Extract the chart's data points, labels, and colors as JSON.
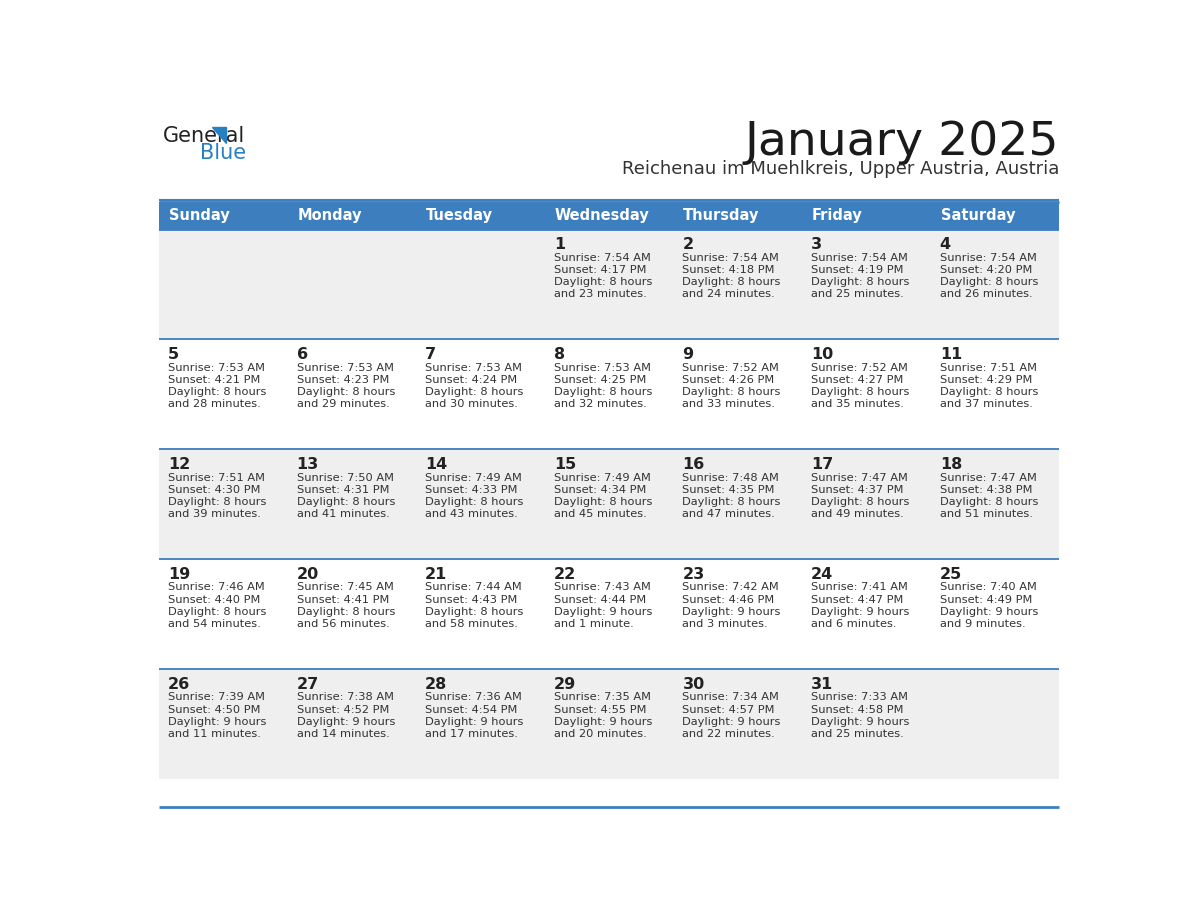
{
  "title": "January 2025",
  "subtitle": "Reichenau im Muehlkreis, Upper Austria, Austria",
  "header_bg_color": "#3d7ebf",
  "header_text_color": "#ffffff",
  "cell_bg_light": "#efefef",
  "cell_bg_white": "#ffffff",
  "border_color": "#3d7ebf",
  "text_color": "#333333",
  "day_number_color": "#222222",
  "day_headers": [
    "Sunday",
    "Monday",
    "Tuesday",
    "Wednesday",
    "Thursday",
    "Friday",
    "Saturday"
  ],
  "days": [
    {
      "day": null,
      "col": 0,
      "row": 0
    },
    {
      "day": null,
      "col": 1,
      "row": 0
    },
    {
      "day": null,
      "col": 2,
      "row": 0
    },
    {
      "day": 1,
      "col": 3,
      "row": 0,
      "sunrise": "7:54 AM",
      "sunset": "4:17 PM",
      "daylight_h": "8 hours",
      "daylight_m": "and 23 minutes."
    },
    {
      "day": 2,
      "col": 4,
      "row": 0,
      "sunrise": "7:54 AM",
      "sunset": "4:18 PM",
      "daylight_h": "8 hours",
      "daylight_m": "and 24 minutes."
    },
    {
      "day": 3,
      "col": 5,
      "row": 0,
      "sunrise": "7:54 AM",
      "sunset": "4:19 PM",
      "daylight_h": "8 hours",
      "daylight_m": "and 25 minutes."
    },
    {
      "day": 4,
      "col": 6,
      "row": 0,
      "sunrise": "7:54 AM",
      "sunset": "4:20 PM",
      "daylight_h": "8 hours",
      "daylight_m": "and 26 minutes."
    },
    {
      "day": 5,
      "col": 0,
      "row": 1,
      "sunrise": "7:53 AM",
      "sunset": "4:21 PM",
      "daylight_h": "8 hours",
      "daylight_m": "and 28 minutes."
    },
    {
      "day": 6,
      "col": 1,
      "row": 1,
      "sunrise": "7:53 AM",
      "sunset": "4:23 PM",
      "daylight_h": "8 hours",
      "daylight_m": "and 29 minutes."
    },
    {
      "day": 7,
      "col": 2,
      "row": 1,
      "sunrise": "7:53 AM",
      "sunset": "4:24 PM",
      "daylight_h": "8 hours",
      "daylight_m": "and 30 minutes."
    },
    {
      "day": 8,
      "col": 3,
      "row": 1,
      "sunrise": "7:53 AM",
      "sunset": "4:25 PM",
      "daylight_h": "8 hours",
      "daylight_m": "and 32 minutes."
    },
    {
      "day": 9,
      "col": 4,
      "row": 1,
      "sunrise": "7:52 AM",
      "sunset": "4:26 PM",
      "daylight_h": "8 hours",
      "daylight_m": "and 33 minutes."
    },
    {
      "day": 10,
      "col": 5,
      "row": 1,
      "sunrise": "7:52 AM",
      "sunset": "4:27 PM",
      "daylight_h": "8 hours",
      "daylight_m": "and 35 minutes."
    },
    {
      "day": 11,
      "col": 6,
      "row": 1,
      "sunrise": "7:51 AM",
      "sunset": "4:29 PM",
      "daylight_h": "8 hours",
      "daylight_m": "and 37 minutes."
    },
    {
      "day": 12,
      "col": 0,
      "row": 2,
      "sunrise": "7:51 AM",
      "sunset": "4:30 PM",
      "daylight_h": "8 hours",
      "daylight_m": "and 39 minutes."
    },
    {
      "day": 13,
      "col": 1,
      "row": 2,
      "sunrise": "7:50 AM",
      "sunset": "4:31 PM",
      "daylight_h": "8 hours",
      "daylight_m": "and 41 minutes."
    },
    {
      "day": 14,
      "col": 2,
      "row": 2,
      "sunrise": "7:49 AM",
      "sunset": "4:33 PM",
      "daylight_h": "8 hours",
      "daylight_m": "and 43 minutes."
    },
    {
      "day": 15,
      "col": 3,
      "row": 2,
      "sunrise": "7:49 AM",
      "sunset": "4:34 PM",
      "daylight_h": "8 hours",
      "daylight_m": "and 45 minutes."
    },
    {
      "day": 16,
      "col": 4,
      "row": 2,
      "sunrise": "7:48 AM",
      "sunset": "4:35 PM",
      "daylight_h": "8 hours",
      "daylight_m": "and 47 minutes."
    },
    {
      "day": 17,
      "col": 5,
      "row": 2,
      "sunrise": "7:47 AM",
      "sunset": "4:37 PM",
      "daylight_h": "8 hours",
      "daylight_m": "and 49 minutes."
    },
    {
      "day": 18,
      "col": 6,
      "row": 2,
      "sunrise": "7:47 AM",
      "sunset": "4:38 PM",
      "daylight_h": "8 hours",
      "daylight_m": "and 51 minutes."
    },
    {
      "day": 19,
      "col": 0,
      "row": 3,
      "sunrise": "7:46 AM",
      "sunset": "4:40 PM",
      "daylight_h": "8 hours",
      "daylight_m": "and 54 minutes."
    },
    {
      "day": 20,
      "col": 1,
      "row": 3,
      "sunrise": "7:45 AM",
      "sunset": "4:41 PM",
      "daylight_h": "8 hours",
      "daylight_m": "and 56 minutes."
    },
    {
      "day": 21,
      "col": 2,
      "row": 3,
      "sunrise": "7:44 AM",
      "sunset": "4:43 PM",
      "daylight_h": "8 hours",
      "daylight_m": "and 58 minutes."
    },
    {
      "day": 22,
      "col": 3,
      "row": 3,
      "sunrise": "7:43 AM",
      "sunset": "4:44 PM",
      "daylight_h": "9 hours",
      "daylight_m": "and 1 minute."
    },
    {
      "day": 23,
      "col": 4,
      "row": 3,
      "sunrise": "7:42 AM",
      "sunset": "4:46 PM",
      "daylight_h": "9 hours",
      "daylight_m": "and 3 minutes."
    },
    {
      "day": 24,
      "col": 5,
      "row": 3,
      "sunrise": "7:41 AM",
      "sunset": "4:47 PM",
      "daylight_h": "9 hours",
      "daylight_m": "and 6 minutes."
    },
    {
      "day": 25,
      "col": 6,
      "row": 3,
      "sunrise": "7:40 AM",
      "sunset": "4:49 PM",
      "daylight_h": "9 hours",
      "daylight_m": "and 9 minutes."
    },
    {
      "day": 26,
      "col": 0,
      "row": 4,
      "sunrise": "7:39 AM",
      "sunset": "4:50 PM",
      "daylight_h": "9 hours",
      "daylight_m": "and 11 minutes."
    },
    {
      "day": 27,
      "col": 1,
      "row": 4,
      "sunrise": "7:38 AM",
      "sunset": "4:52 PM",
      "daylight_h": "9 hours",
      "daylight_m": "and 14 minutes."
    },
    {
      "day": 28,
      "col": 2,
      "row": 4,
      "sunrise": "7:36 AM",
      "sunset": "4:54 PM",
      "daylight_h": "9 hours",
      "daylight_m": "and 17 minutes."
    },
    {
      "day": 29,
      "col": 3,
      "row": 4,
      "sunrise": "7:35 AM",
      "sunset": "4:55 PM",
      "daylight_h": "9 hours",
      "daylight_m": "and 20 minutes."
    },
    {
      "day": 30,
      "col": 4,
      "row": 4,
      "sunrise": "7:34 AM",
      "sunset": "4:57 PM",
      "daylight_h": "9 hours",
      "daylight_m": "and 22 minutes."
    },
    {
      "day": 31,
      "col": 5,
      "row": 4,
      "sunrise": "7:33 AM",
      "sunset": "4:58 PM",
      "daylight_h": "9 hours",
      "daylight_m": "and 25 minutes."
    },
    {
      "day": null,
      "col": 6,
      "row": 4
    }
  ],
  "logo_color_general": "#222222",
  "logo_color_blue": "#2680c2",
  "fig_width": 11.88,
  "fig_height": 9.18,
  "dpi": 100
}
